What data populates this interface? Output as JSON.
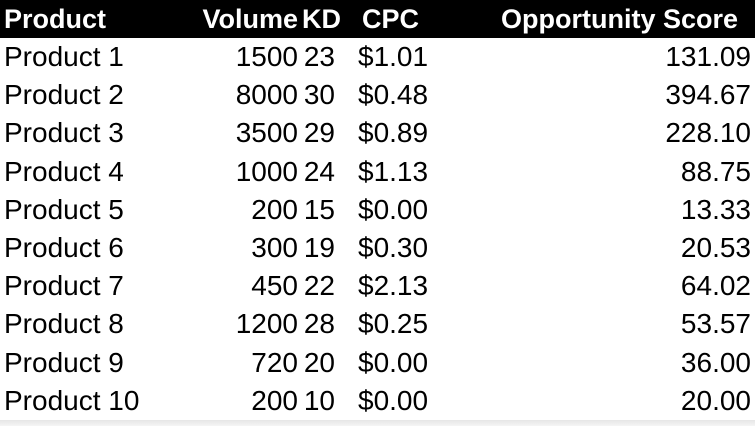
{
  "table": {
    "headers": {
      "product": "Product",
      "volume": "Volume",
      "kd": "KD",
      "cpc": "CPC",
      "score": "Opportunity Score"
    },
    "rows": [
      {
        "product": "Product 1",
        "volume": "1500",
        "kd": "23",
        "cpc": "$1.01",
        "score": "131.09"
      },
      {
        "product": "Product 2",
        "volume": "8000",
        "kd": "30",
        "cpc": "$0.48",
        "score": "394.67"
      },
      {
        "product": "Product 3",
        "volume": "3500",
        "kd": "29",
        "cpc": "$0.89",
        "score": "228.10"
      },
      {
        "product": "Product 4",
        "volume": "1000",
        "kd": "24",
        "cpc": "$1.13",
        "score": "88.75"
      },
      {
        "product": "Product 5",
        "volume": "200",
        "kd": "15",
        "cpc": "$0.00",
        "score": "13.33"
      },
      {
        "product": "Product 6",
        "volume": "300",
        "kd": "19",
        "cpc": "$0.30",
        "score": "20.53"
      },
      {
        "product": "Product 7",
        "volume": "450",
        "kd": "22",
        "cpc": "$2.13",
        "score": "64.02"
      },
      {
        "product": "Product 8",
        "volume": "1200",
        "kd": "28",
        "cpc": "$0.25",
        "score": "53.57"
      },
      {
        "product": "Product 9",
        "volume": "720",
        "kd": "20",
        "cpc": "$0.00",
        "score": "36.00"
      },
      {
        "product": "Product 10",
        "volume": "200",
        "kd": "10",
        "cpc": "$0.00",
        "score": "20.00"
      }
    ]
  },
  "colors": {
    "header_background": "#000000",
    "header_text": "#ffffff",
    "body_text": "#000000",
    "page_background": "#ffffff"
  }
}
